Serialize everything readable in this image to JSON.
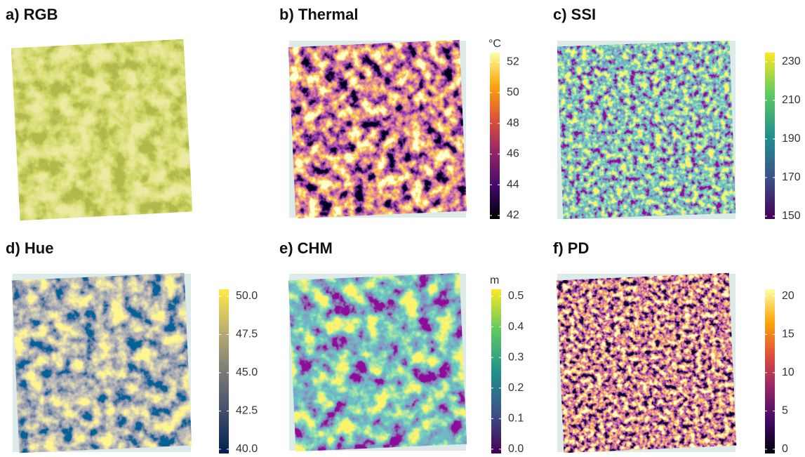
{
  "chart_data": [
    {
      "type": "raster",
      "title": "a) RGB"
    },
    {
      "type": "raster",
      "title": "b) Thermal",
      "colorbar_label": "°C",
      "colors": [
        "#000004",
        "#420a68",
        "#932667",
        "#dd513a",
        "#fca50a",
        "#fcffa4"
      ],
      "ylim": [
        41.77,
        52.6
      ],
      "yticks": [
        42,
        44,
        46,
        48,
        50,
        52
      ]
    },
    {
      "type": "raster",
      "title": "c) SSI",
      "colors": [
        "#440154",
        "#3b528b",
        "#21918c",
        "#5ec962",
        "#fde725"
      ],
      "ylim": [
        148.5,
        234.7
      ],
      "yticks": [
        150,
        170,
        190,
        210,
        230
      ]
    },
    {
      "type": "raster",
      "title": "d) Hue",
      "colors": [
        "#00204d",
        "#414d6b",
        "#7c7b78",
        "#bcaf6f",
        "#ffea46"
      ],
      "ylim": [
        39.72,
        50.46
      ],
      "yticks": [
        {
          "value": 40,
          "label": "40.0"
        },
        42.5,
        {
          "value": 45,
          "label": "45.0"
        },
        47.5,
        {
          "value": 50,
          "label": "50.0"
        }
      ]
    },
    {
      "type": "raster",
      "title": "e) CHM",
      "colorbar_label": "m",
      "colors": [
        "#440154",
        "#3b528b",
        "#21918c",
        "#5ec962",
        "#fde725"
      ],
      "ylim": [
        -0.014,
        0.523
      ],
      "yticks": [
        {
          "value": 0,
          "label": "0.0"
        },
        0.1,
        0.2,
        0.3,
        0.4,
        0.5
      ]
    },
    {
      "type": "raster",
      "title": "f) PD",
      "colors": [
        "#000004",
        "#420a68",
        "#932667",
        "#dd513a",
        "#fca50a",
        "#fcffa4"
      ],
      "ylim": [
        -0.55,
        20.9
      ],
      "yticks": [
        0,
        5,
        10,
        15,
        20
      ]
    }
  ]
}
